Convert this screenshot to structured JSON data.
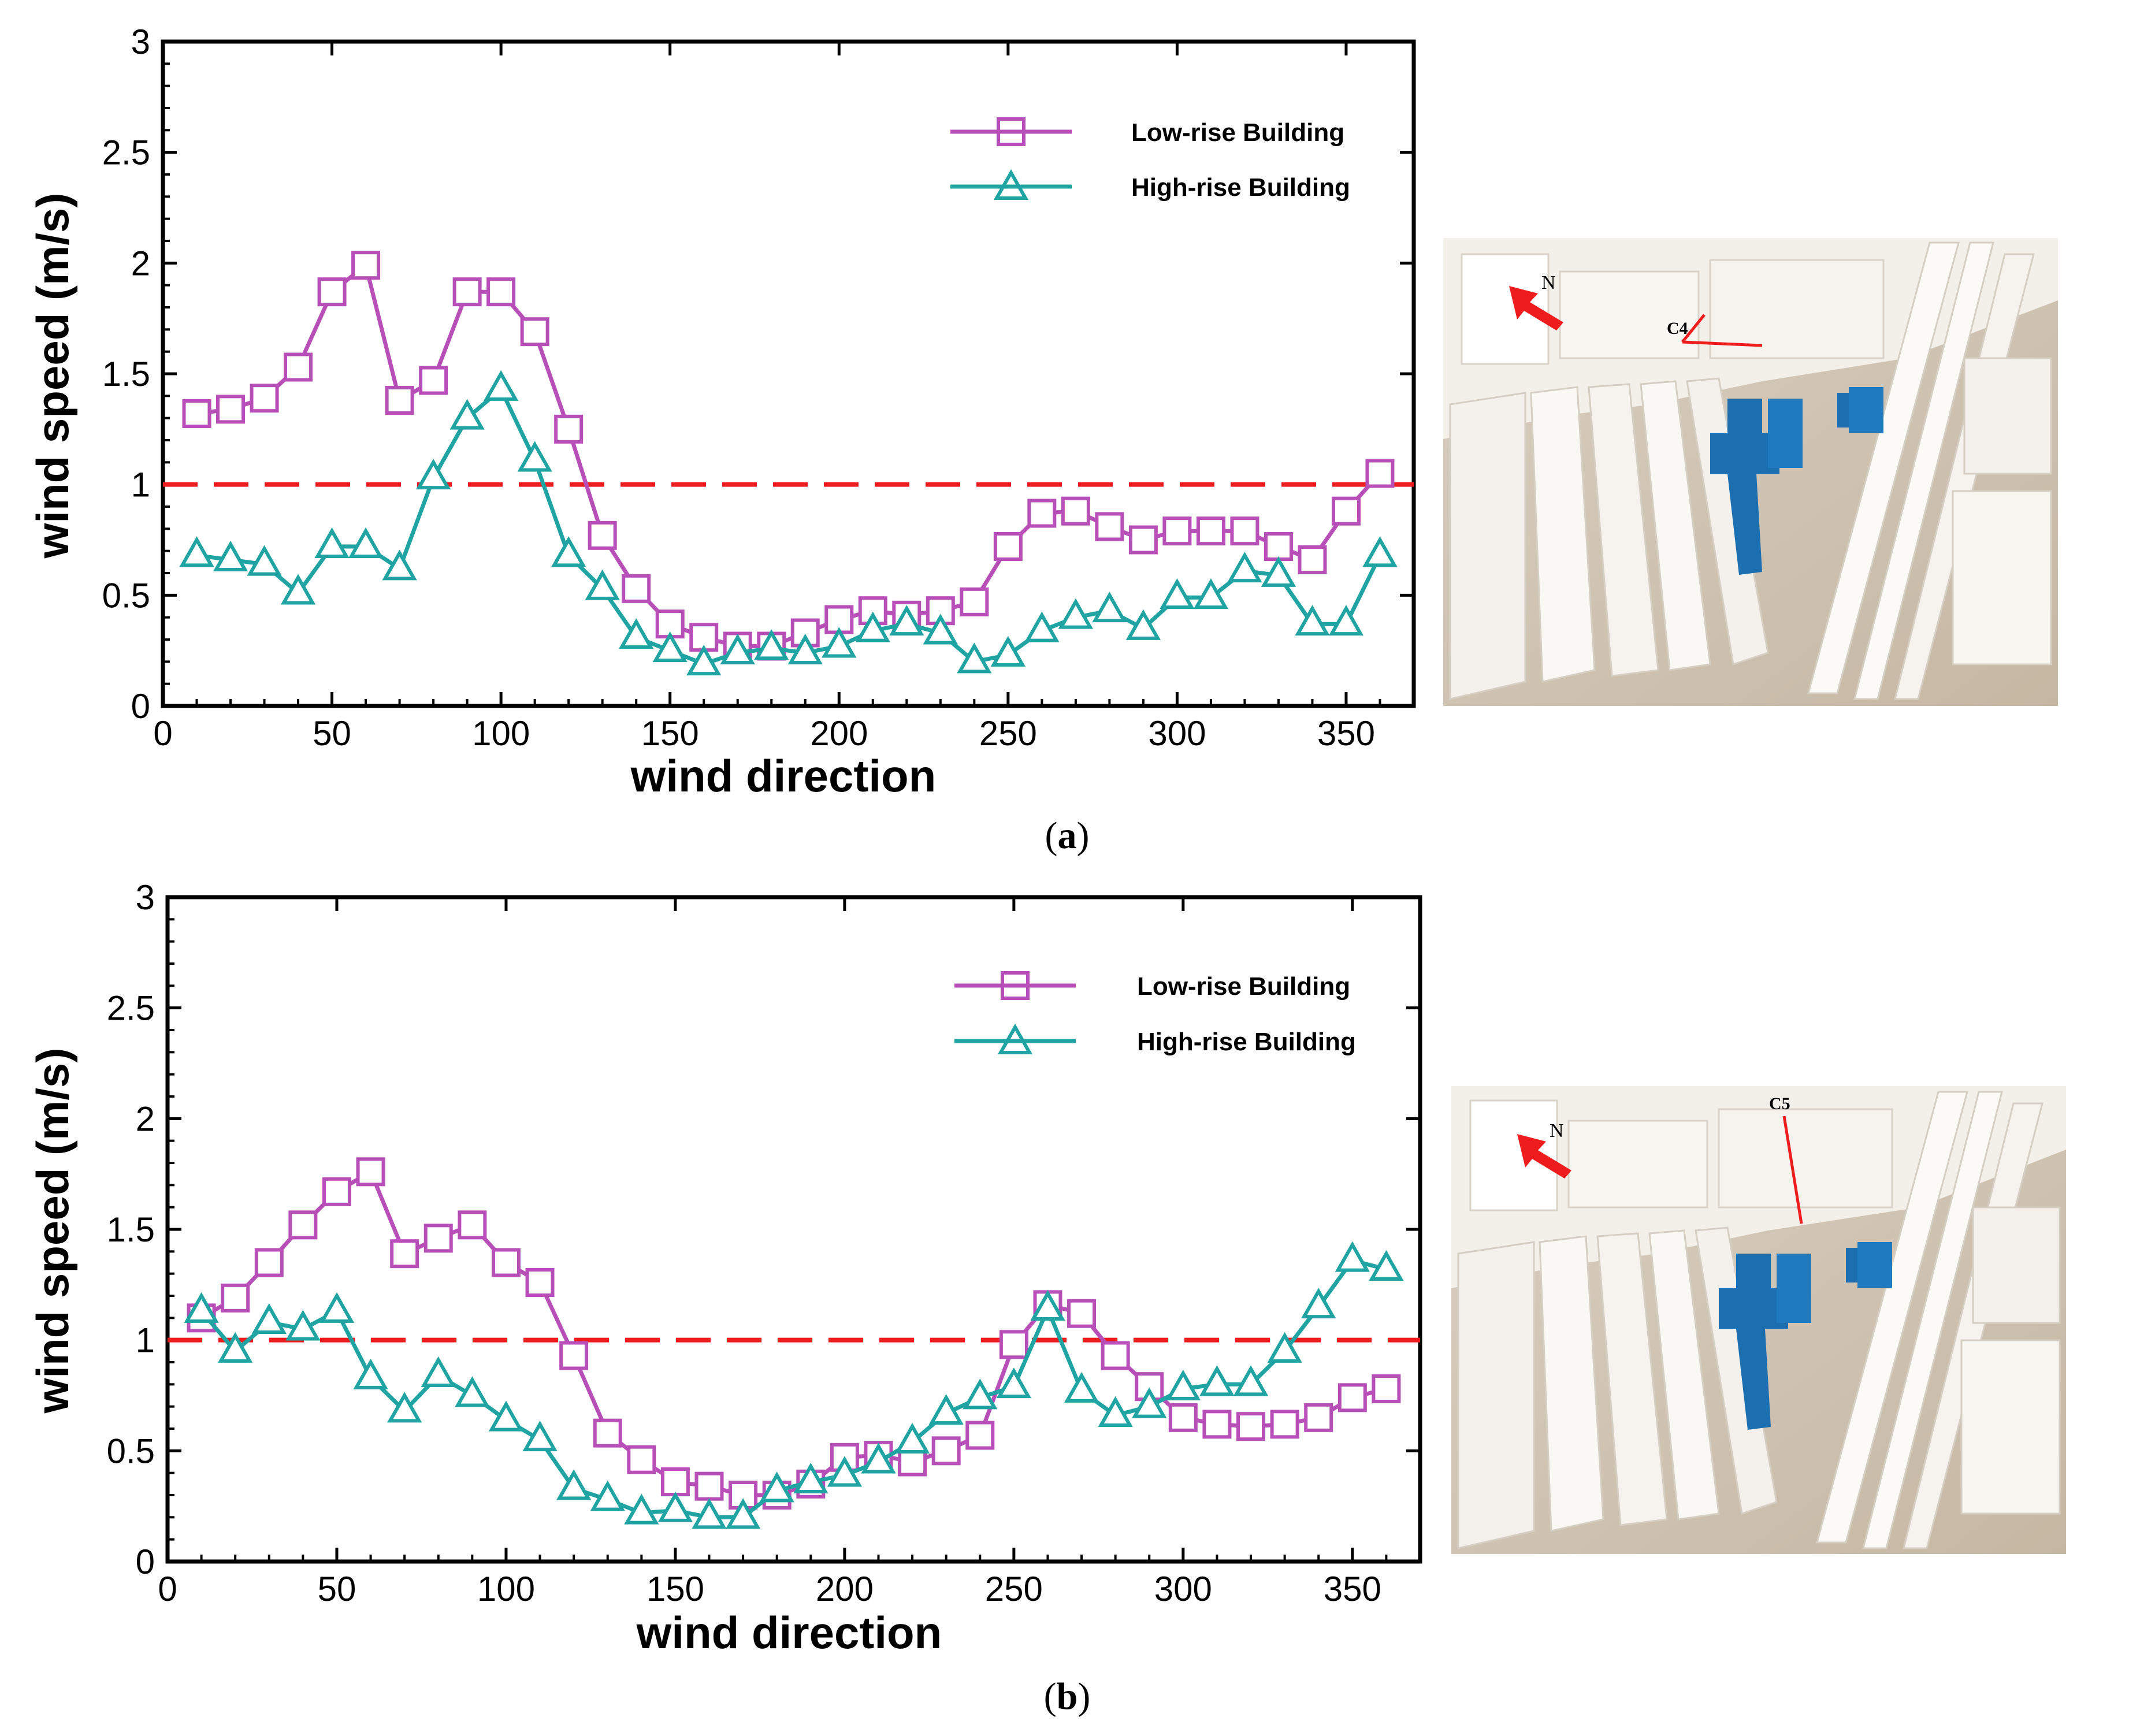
{
  "figure": {
    "panels": [
      {
        "label_open": "(",
        "label_letter": "a",
        "label_close": ")",
        "photo": {
          "north_label": "N",
          "point_label": "C4"
        }
      },
      {
        "label_open": "(",
        "label_letter": "b",
        "label_close": ")",
        "photo": {
          "north_label": "N",
          "point_label": "C5"
        }
      }
    ]
  },
  "colors": {
    "low_rise": "#b84fb8",
    "high_rise": "#1fa3a3",
    "threshold": "#ee1c1c"
  },
  "chart_data": [
    {
      "type": "line",
      "xlabel": "wind direction",
      "ylabel": "wind speed (m/s)",
      "xlim": [
        0,
        370
      ],
      "ylim": [
        0,
        3
      ],
      "xticks": [
        0,
        50,
        100,
        150,
        200,
        250,
        300,
        350
      ],
      "yticks": [
        0,
        0.5,
        1,
        1.5,
        2,
        2.5,
        3
      ],
      "ytick_labels": [
        "0",
        "0.5",
        "1",
        "1.5",
        "2",
        "2.5",
        "3"
      ],
      "legend_position": "top-right",
      "reference_line": {
        "y": 1,
        "style": "dashed"
      },
      "x": [
        10,
        20,
        30,
        40,
        50,
        60,
        70,
        80,
        90,
        100,
        110,
        120,
        130,
        140,
        150,
        160,
        170,
        180,
        190,
        200,
        210,
        220,
        230,
        240,
        250,
        260,
        270,
        280,
        290,
        300,
        310,
        320,
        330,
        340,
        350,
        360
      ],
      "series": [
        {
          "name": "Low-rise Building",
          "marker": "square",
          "values": [
            1.32,
            1.34,
            1.39,
            1.53,
            1.87,
            1.99,
            1.38,
            1.47,
            1.87,
            1.87,
            1.69,
            1.25,
            0.77,
            0.53,
            0.37,
            0.31,
            0.27,
            0.27,
            0.33,
            0.39,
            0.43,
            0.41,
            0.43,
            0.47,
            0.72,
            0.87,
            0.88,
            0.81,
            0.75,
            0.79,
            0.79,
            0.79,
            0.72,
            0.66,
            0.88,
            1.05
          ]
        },
        {
          "name": "High-rise Building",
          "marker": "triangle",
          "values": [
            0.68,
            0.66,
            0.64,
            0.51,
            0.72,
            0.72,
            0.62,
            1.03,
            1.3,
            1.43,
            1.11,
            0.68,
            0.53,
            0.31,
            0.25,
            0.19,
            0.24,
            0.26,
            0.24,
            0.27,
            0.34,
            0.37,
            0.33,
            0.2,
            0.23,
            0.34,
            0.4,
            0.43,
            0.35,
            0.49,
            0.49,
            0.61,
            0.59,
            0.37,
            0.37,
            0.68
          ]
        }
      ]
    },
    {
      "type": "line",
      "xlabel": "wind direction",
      "ylabel": "wind speed (m/s)",
      "xlim": [
        0,
        370
      ],
      "ylim": [
        0,
        3
      ],
      "xticks": [
        0,
        50,
        100,
        150,
        200,
        250,
        300,
        350
      ],
      "yticks": [
        0,
        0.5,
        1,
        1.5,
        2,
        2.5,
        3
      ],
      "ytick_labels": [
        "0",
        "0.5",
        "1",
        "1.5",
        "2",
        "2.5",
        "3"
      ],
      "legend_position": "top-right",
      "reference_line": {
        "y": 1,
        "style": "dashed"
      },
      "x": [
        10,
        20,
        30,
        40,
        50,
        60,
        70,
        80,
        90,
        100,
        110,
        120,
        130,
        140,
        150,
        160,
        170,
        180,
        190,
        200,
        210,
        220,
        230,
        240,
        250,
        260,
        270,
        280,
        290,
        300,
        310,
        320,
        330,
        340,
        350,
        360
      ],
      "series": [
        {
          "name": "Low-rise Building",
          "marker": "square",
          "values": [
            1.1,
            1.19,
            1.35,
            1.52,
            1.67,
            1.76,
            1.39,
            1.46,
            1.52,
            1.35,
            1.26,
            0.93,
            0.58,
            0.46,
            0.36,
            0.34,
            0.3,
            0.3,
            0.35,
            0.47,
            0.48,
            0.45,
            0.5,
            0.57,
            0.98,
            1.16,
            1.12,
            0.93,
            0.79,
            0.65,
            0.62,
            0.61,
            0.62,
            0.65,
            0.74,
            0.78
          ]
        },
        {
          "name": "High-rise Building",
          "marker": "triangle",
          "values": [
            1.13,
            0.95,
            1.08,
            1.05,
            1.13,
            0.83,
            0.68,
            0.84,
            0.75,
            0.64,
            0.55,
            0.33,
            0.28,
            0.22,
            0.23,
            0.2,
            0.2,
            0.32,
            0.36,
            0.39,
            0.45,
            0.54,
            0.67,
            0.74,
            0.79,
            1.14,
            0.77,
            0.66,
            0.7,
            0.78,
            0.8,
            0.8,
            0.95,
            1.15,
            1.36,
            1.32
          ]
        }
      ]
    }
  ]
}
